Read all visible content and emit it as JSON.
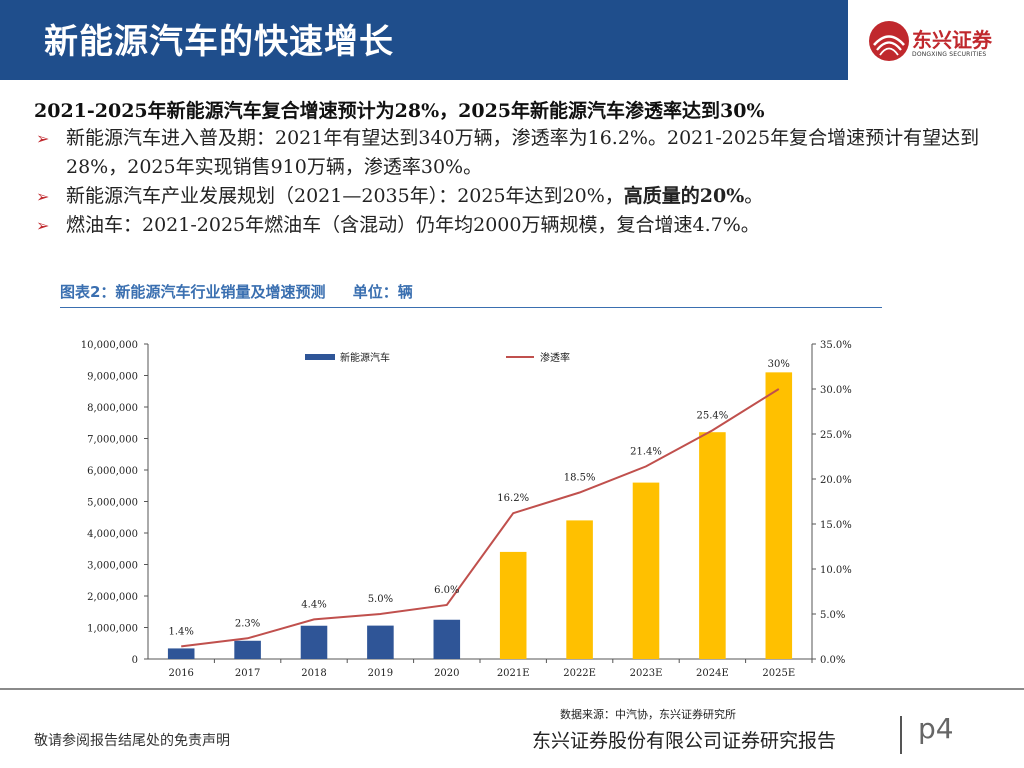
{
  "header": {
    "title": "新能源汽车的快速增长"
  },
  "logo": {
    "name_cn": "东兴证券",
    "name_en": "DONGXING SECURITIES"
  },
  "headline": "2021-2025年新能源汽车复合增速预计为28%，2025年新能源汽车渗透率达到30%",
  "bullets": [
    {
      "text": "新能源汽车进入普及期：2021年有望达到340万辆，渗透率为16.2%。2021-2025年复合增速预计有望达到28%，2025年实现销售910万辆，渗透率30%。"
    },
    {
      "text": "新能源汽车产业发展规划（2021—2035年）：2025年达到20%，",
      "bold": "高质量的20%",
      "tail": "。"
    },
    {
      "text": "燃油车：2021-2025年燃油车（含混动）仍年均2000万辆规模，复合增速4.7%。"
    }
  ],
  "chart_caption": {
    "title": "图表2：新能源汽车行业销量及增速预测",
    "unit": "单位：辆"
  },
  "chart_data": {
    "type": "bar",
    "categories": [
      "2016",
      "2017",
      "2018",
      "2019",
      "2020",
      "2021E",
      "2022E",
      "2023E",
      "2024E",
      "2025E"
    ],
    "series": [
      {
        "name": "新能源汽车",
        "kind": "bar",
        "axis": "left",
        "values": [
          336000,
          579000,
          1056000,
          1060000,
          1246000,
          3400000,
          4400000,
          5600000,
          7200000,
          9100000
        ],
        "colors": [
          "#2f5597",
          "#2f5597",
          "#2f5597",
          "#2f5597",
          "#2f5597",
          "#ffc000",
          "#ffc000",
          "#ffc000",
          "#ffc000",
          "#ffc000"
        ]
      },
      {
        "name": "渗透率",
        "kind": "line",
        "axis": "right",
        "color": "#c0504d",
        "values": [
          1.4,
          2.3,
          4.4,
          5.0,
          6.0,
          16.2,
          18.5,
          21.4,
          25.4,
          30.0
        ],
        "labels": [
          "1.4%",
          "2.3%",
          "4.4%",
          "5.0%",
          "6.0%",
          "16.2%",
          "18.5%",
          "21.4%",
          "25.4%",
          "30%"
        ]
      }
    ],
    "y_left": {
      "ylim": [
        0,
        10000000
      ],
      "ticks": [
        "0",
        "1,000,000",
        "2,000,000",
        "3,000,000",
        "4,000,000",
        "5,000,000",
        "6,000,000",
        "7,000,000",
        "8,000,000",
        "9,000,000",
        "10,000,000"
      ]
    },
    "y_right": {
      "ylim": [
        0,
        35
      ],
      "ticks": [
        "0.0%",
        "5.0%",
        "10.0%",
        "15.0%",
        "20.0%",
        "25.0%",
        "30.0%",
        "35.0%"
      ]
    },
    "legend": {
      "placement": "top",
      "items": [
        "新能源汽车",
        "渗透率"
      ]
    },
    "grid": false
  },
  "source": "数据来源：中汽协，东兴证券研究所",
  "footer": {
    "disclaimer": "敬请参阅报告结尾处的免责声明",
    "brand": "东兴证券股份有限公司证券研究报告",
    "page": "p4"
  }
}
